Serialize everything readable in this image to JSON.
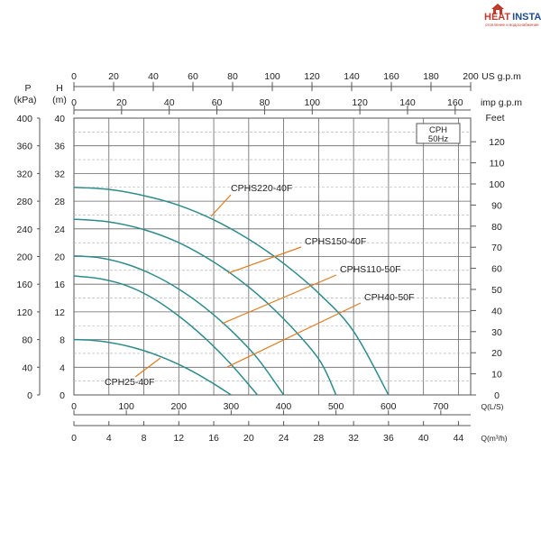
{
  "brand": {
    "name_part1": "HEAT",
    "name_part2": "INSTALL",
    "tagline": "отопление и водоснабжение",
    "color_primary": "#c0392b",
    "color_secondary": "#1f4e8c"
  },
  "chart_data": {
    "type": "line",
    "legend_box": [
      "CPH",
      "50Hz"
    ],
    "axes": {
      "pressure": {
        "title_line1": "P",
        "title_line2": "(kPa)",
        "range": [
          0,
          400
        ],
        "ticks": [
          "0",
          "40",
          "80",
          "120",
          "160",
          "200",
          "240",
          "280",
          "320",
          "360",
          "400"
        ]
      },
      "head": {
        "title_line1": "H",
        "title_line2": "(m)",
        "range": [
          0,
          40
        ],
        "ticks": [
          "0",
          "4",
          "8",
          "12",
          "16",
          "20",
          "24",
          "28",
          "32",
          "36",
          "40"
        ]
      },
      "feet": {
        "title": "Feet",
        "range": [
          0,
          131.2
        ],
        "ticks": [
          "0",
          "10",
          "20",
          "30",
          "40",
          "50",
          "60",
          "70",
          "80",
          "90",
          "100",
          "110",
          "120"
        ]
      },
      "us_gpm": {
        "title": "US g.p.m",
        "range": [
          0,
          200
        ],
        "ticks": [
          "0",
          "20",
          "40",
          "60",
          "80",
          "100",
          "120",
          "140",
          "160",
          "180",
          "200"
        ]
      },
      "imp_gpm": {
        "title": "imp g.p.m",
        "range": [
          0,
          166.5
        ],
        "ticks": [
          "0",
          "20",
          "40",
          "60",
          "80",
          "100",
          "120",
          "140",
          "160"
        ]
      },
      "flow_ls": {
        "title": "Q(L/S)",
        "note": "tick labels printed as L/min",
        "range": [
          0,
          757
        ],
        "ticks": [
          "0",
          "100",
          "200",
          "300",
          "400",
          "500",
          "600",
          "700"
        ]
      },
      "flow_m3h": {
        "title": "Q(m³/h)",
        "range": [
          0,
          45.4
        ],
        "ticks": [
          "0",
          "4",
          "8",
          "12",
          "16",
          "20",
          "24",
          "28",
          "32",
          "36",
          "40",
          "44"
        ]
      }
    },
    "x_unit": "m³/h",
    "y_unit": "m",
    "series": [
      {
        "name": "CPH25-40F",
        "color": "#2e8b8b",
        "x": [
          0,
          2,
          4,
          6,
          8,
          10,
          12,
          14,
          16,
          18
        ],
        "y": [
          8.0,
          7.9,
          7.6,
          7.1,
          6.4,
          5.5,
          4.4,
          3.1,
          1.6,
          0
        ]
      },
      {
        "name": "CPH40-50F",
        "color": "#2e8b8b",
        "x": [
          0,
          3,
          6,
          9,
          12,
          15,
          18,
          21
        ],
        "y": [
          17.2,
          16.8,
          15.8,
          14.0,
          11.4,
          8.2,
          4.4,
          0
        ]
      },
      {
        "name": "CPHS110-50F",
        "color": "#2e8b8b",
        "x": [
          0,
          3,
          6,
          9,
          12,
          15,
          18,
          21,
          24
        ],
        "y": [
          20.1,
          19.8,
          18.9,
          17.4,
          15.3,
          12.6,
          9.3,
          5.3,
          0
        ]
      },
      {
        "name": "CPHS150-40F",
        "color": "#2e8b8b",
        "x": [
          0,
          4,
          8,
          12,
          16,
          20,
          24,
          28,
          30
        ],
        "y": [
          25.4,
          25.0,
          23.9,
          22.0,
          19.2,
          15.6,
          11.0,
          5.2,
          0
        ]
      },
      {
        "name": "CPHS220-40F",
        "color": "#2e8b8b",
        "x": [
          0,
          4,
          8,
          12,
          16,
          20,
          24,
          28,
          32,
          36
        ],
        "y": [
          30.0,
          29.7,
          28.8,
          27.4,
          25.3,
          22.5,
          19.0,
          14.7,
          9.2,
          0
        ]
      }
    ],
    "grid": true,
    "annotation_color": "#e07b20"
  }
}
